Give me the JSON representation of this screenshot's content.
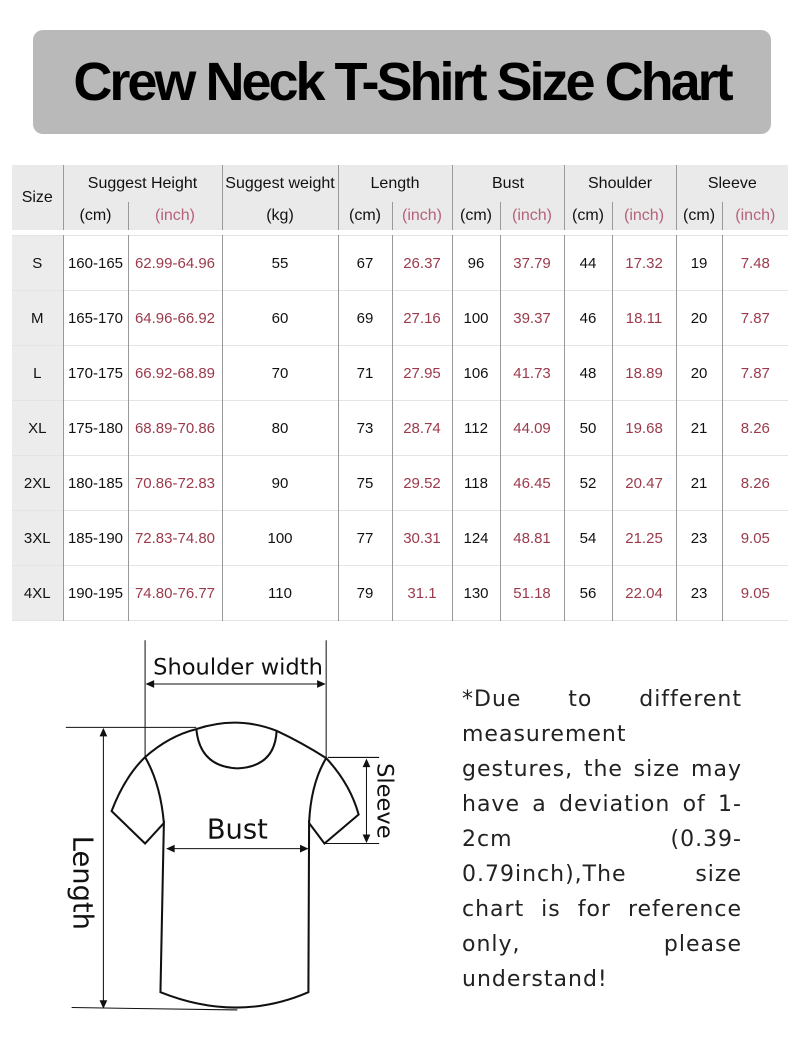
{
  "title": "Crew Neck T-Shirt Size Chart",
  "table": {
    "size_header": "Size",
    "groups": [
      "Suggest Height",
      "Suggest weight",
      "Length",
      "Bust",
      "Shoulder",
      "Sleeve"
    ],
    "units": [
      "(cm)",
      "(inch)",
      "(kg)",
      "(cm)",
      "(inch)",
      "(cm)",
      "(inch)",
      "(cm)",
      "(inch)",
      "(cm)",
      "(inch)"
    ],
    "rows": [
      {
        "size": "S",
        "cells": [
          "160-165",
          "62.99-64.96",
          "55",
          "67",
          "26.37",
          "96",
          "37.79",
          "44",
          "17.32",
          "19",
          "7.48"
        ]
      },
      {
        "size": "M",
        "cells": [
          "165-170",
          "64.96-66.92",
          "60",
          "69",
          "27.16",
          "100",
          "39.37",
          "46",
          "18.11",
          "20",
          "7.87"
        ]
      },
      {
        "size": "L",
        "cells": [
          "170-175",
          "66.92-68.89",
          "70",
          "71",
          "27.95",
          "106",
          "41.73",
          "48",
          "18.89",
          "20",
          "7.87"
        ]
      },
      {
        "size": "XL",
        "cells": [
          "175-180",
          "68.89-70.86",
          "80",
          "73",
          "28.74",
          "112",
          "44.09",
          "50",
          "19.68",
          "21",
          "8.26"
        ]
      },
      {
        "size": "2XL",
        "cells": [
          "180-185",
          "70.86-72.83",
          "90",
          "75",
          "29.52",
          "118",
          "46.45",
          "52",
          "20.47",
          "21",
          "8.26"
        ]
      },
      {
        "size": "3XL",
        "cells": [
          "185-190",
          "72.83-74.80",
          "100",
          "77",
          "30.31",
          "124",
          "48.81",
          "54",
          "21.25",
          "23",
          "9.05"
        ]
      },
      {
        "size": "4XL",
        "cells": [
          "190-195",
          "74.80-76.77",
          "110",
          "79",
          "31.1",
          "130",
          "51.18",
          "56",
          "22.04",
          "23",
          "9.05"
        ]
      }
    ]
  },
  "diagram": {
    "shoulder": "Shoulder width",
    "bust": "Bust",
    "length": "Length",
    "sleeve": "Sleeve"
  },
  "note": "*Due to different measurement gestures, the size may have a deviation of 1-2cm (0.39-0.79inch),The size chart is for reference only, please understand!",
  "colors": {
    "inch_text": "#9b3a4b",
    "header_bg": "#eaeaea",
    "title_bg": "#b9b9b9"
  }
}
